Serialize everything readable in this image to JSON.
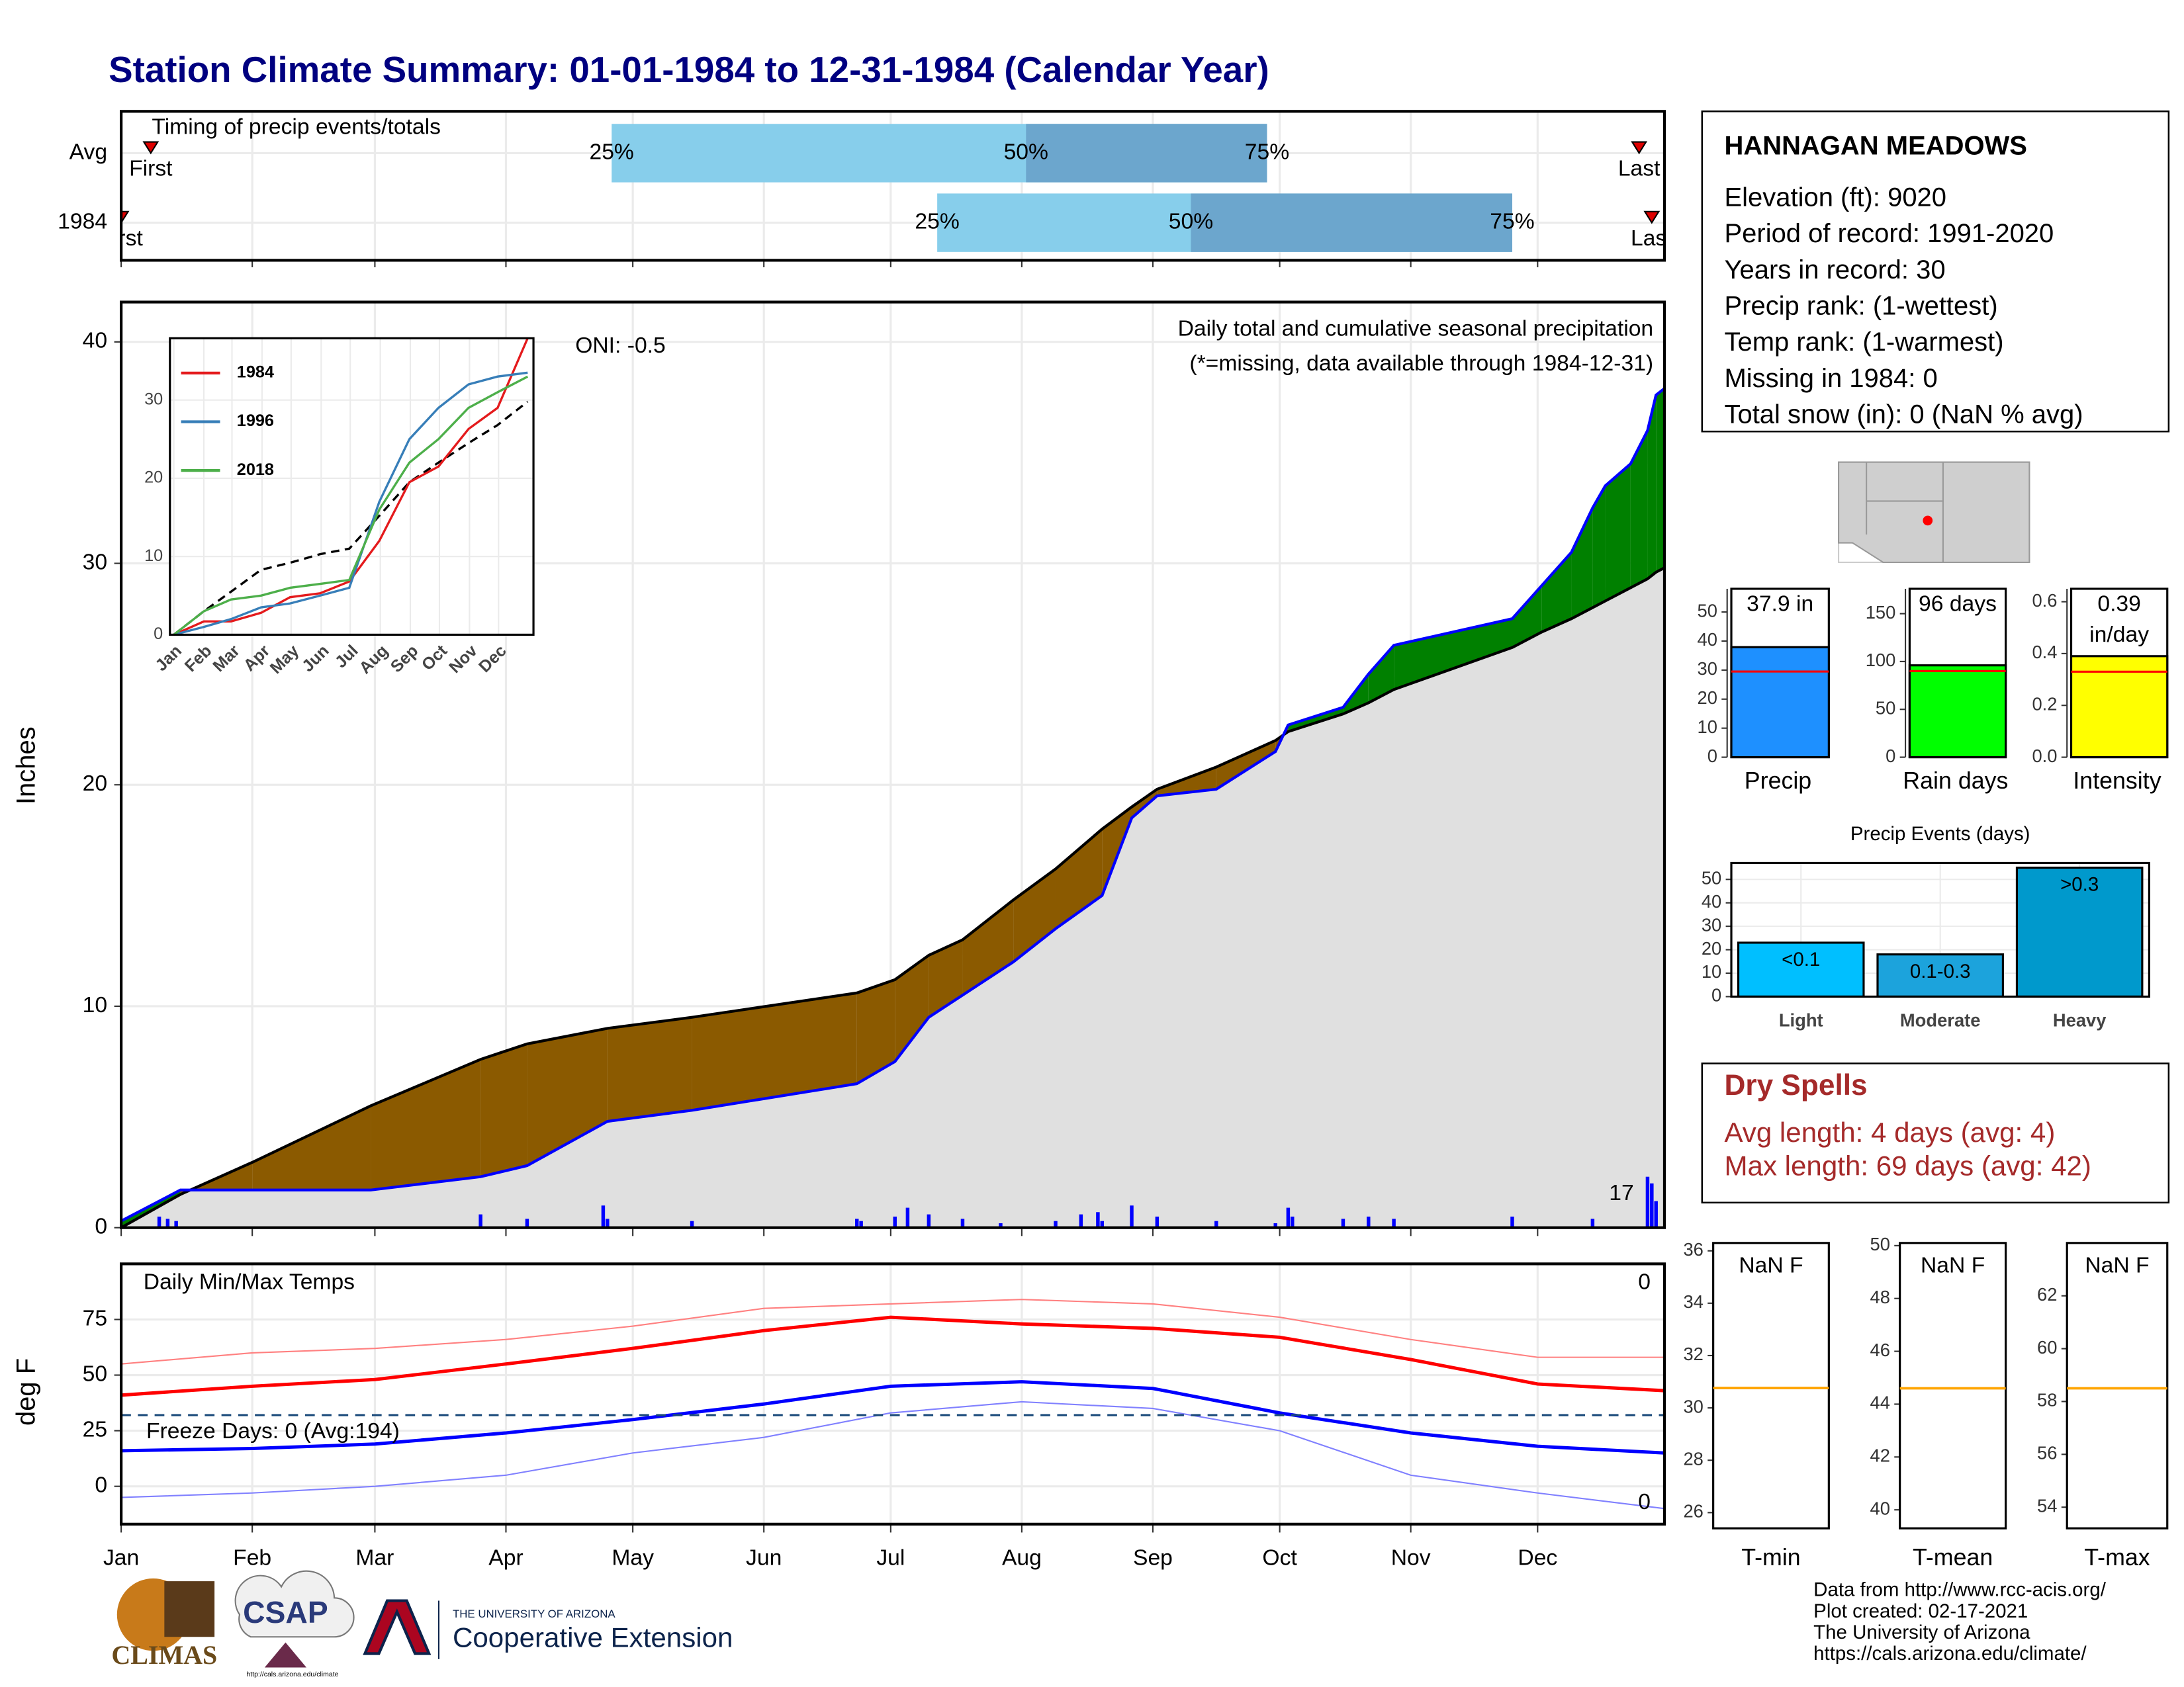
{
  "title": "Station Climate Summary: 01-01-1984 to 12-31-1984 (Calendar Year)",
  "chart_data": [
    {
      "type": "timing",
      "title": "Timing of precip events/totals",
      "categories": [
        "Avg",
        "1984"
      ],
      "series": [
        {
          "name": "First",
          "values": [
            8,
            1
          ]
        },
        {
          "name": "25%",
          "values": [
            117,
            194
          ]
        },
        {
          "name": "50%",
          "values": [
            215,
            254
          ]
        },
        {
          "name": "75%",
          "values": [
            272,
            330
          ]
        },
        {
          "name": "Last",
          "values": [
            360,
            363
          ]
        }
      ],
      "colors": [
        "#87ceeb",
        "#6ca6cd"
      ],
      "marker_color": "#dd0000",
      "xlim": [
        1,
        366
      ]
    },
    {
      "type": "precip",
      "ylabel": "Inches",
      "xlim": [
        1,
        366
      ],
      "ylim": [
        0,
        41.8
      ],
      "yticks": [
        0,
        10,
        20,
        30,
        40
      ],
      "annotations": [
        "ONI: -0.5",
        "Daily total and cumulative seasonal precipitation",
        "(*=missing, data available through 1984-12-31)",
        "17"
      ],
      "x": [
        1,
        15,
        32,
        60,
        86,
        97,
        116,
        136,
        175,
        184,
        192,
        200,
        212,
        222,
        233,
        240,
        246,
        260,
        274,
        277,
        290,
        296,
        302,
        330,
        337,
        344,
        349,
        352,
        358,
        362,
        364,
        366
      ],
      "observed": {
        "color": "#0000ff",
        "values": [
          0.3,
          1.7,
          1.7,
          1.7,
          2.3,
          2.8,
          4.8,
          5.3,
          6.5,
          7.5,
          9.5,
          10.5,
          12.0,
          13.5,
          15.0,
          18.5,
          19.5,
          19.8,
          21.5,
          22.7,
          23.5,
          25.0,
          26.3,
          27.5,
          29.0,
          30.5,
          32.5,
          33.5,
          34.5,
          36.0,
          37.6,
          37.9
        ]
      },
      "average": {
        "color": "#000000",
        "values": [
          0,
          1.5,
          2.95,
          5.5,
          7.6,
          8.3,
          9.0,
          9.5,
          10.6,
          11.2,
          12.3,
          13.0,
          14.8,
          16.2,
          18.0,
          19.0,
          19.8,
          20.8,
          22.0,
          22.4,
          23.2,
          23.7,
          24.3,
          26.2,
          26.9,
          27.5,
          28.0,
          28.3,
          28.9,
          29.3,
          29.6,
          29.8
        ]
      },
      "below_color": "#8b5a00",
      "above_color": "#008000",
      "base_color": "#e0e0e0",
      "daily": {
        "color": "#0000ff",
        "x": [
          10,
          12,
          14,
          86,
          97,
          115,
          116,
          136,
          175,
          176,
          184,
          187,
          192,
          200,
          209,
          222,
          228,
          232,
          233,
          240,
          246,
          260,
          274,
          277,
          278,
          290,
          296,
          302,
          330,
          349,
          362,
          363,
          364
        ],
        "values": [
          0.5,
          0.4,
          0.3,
          0.6,
          0.4,
          1.0,
          0.4,
          0.3,
          0.4,
          0.3,
          0.5,
          0.9,
          0.6,
          0.4,
          0.2,
          0.3,
          0.6,
          0.7,
          0.3,
          1.0,
          0.5,
          0.3,
          0.2,
          0.9,
          0.5,
          0.4,
          0.5,
          0.4,
          0.5,
          0.4,
          2.3,
          2.0,
          1.2
        ]
      }
    },
    {
      "type": "line",
      "legend": "top-left",
      "xlim": [
        -3,
        372
      ],
      "ylim": [
        0,
        37.9
      ],
      "yticks": [
        0,
        10,
        20,
        30
      ],
      "xticks": [
        {
          "value": 1,
          "label": "Jan"
        },
        {
          "value": 32,
          "label": "Feb"
        },
        {
          "value": 61,
          "label": "Mar"
        },
        {
          "value": 92,
          "label": "Apr"
        },
        {
          "value": 122,
          "label": "May"
        },
        {
          "value": 153,
          "label": "Jun"
        },
        {
          "value": 183,
          "label": "Jul"
        },
        {
          "value": 214,
          "label": "Aug"
        },
        {
          "value": 245,
          "label": "Sep"
        },
        {
          "value": 275,
          "label": "Oct"
        },
        {
          "value": 306,
          "label": "Nov"
        },
        {
          "value": 336,
          "label": "Dec"
        }
      ],
      "x": [
        1,
        32,
        60,
        91,
        121,
        152,
        182,
        213,
        244,
        274,
        305,
        335,
        366
      ],
      "series": [
        {
          "name": "1984",
          "color": "#e41a1c",
          "values": [
            0,
            1.7,
            1.7,
            2.8,
            4.8,
            5.3,
            6.8,
            12,
            19.5,
            21.5,
            26.3,
            29,
            37.9
          ]
        },
        {
          "name": "1996",
          "color": "#377eb8",
          "values": [
            0,
            1,
            2,
            3.5,
            4,
            5,
            6,
            17,
            25,
            29,
            32,
            33,
            33.5
          ]
        },
        {
          "name": "2018",
          "color": "#4daf4a",
          "values": [
            0,
            3,
            4.5,
            5,
            6,
            6.5,
            7,
            16,
            22,
            25,
            29,
            31,
            33
          ]
        }
      ],
      "average": {
        "color": "#000000",
        "values": [
          0,
          3,
          5.5,
          8.3,
          9.2,
          10.3,
          11,
          15.2,
          19.5,
          22,
          24.5,
          26.8,
          29.8
        ]
      }
    },
    {
      "type": "bar",
      "categories": [
        "Precip"
      ],
      "values": [
        37.9
      ],
      "value_labels": [
        "37.9 in"
      ],
      "reference": 29.5,
      "color": "#1e90ff",
      "reference_color": "#ff0000",
      "ylim": [
        0,
        58
      ],
      "yticks": [
        0,
        10,
        20,
        30,
        40,
        50
      ]
    },
    {
      "type": "bar",
      "categories": [
        "Rain days"
      ],
      "values": [
        96
      ],
      "value_labels": [
        "96 days"
      ],
      "reference": 90,
      "color": "#00ff00",
      "reference_color": "#ff0000",
      "ylim": [
        0,
        176
      ],
      "yticks": [
        0,
        50,
        100,
        150
      ]
    },
    {
      "type": "bar",
      "categories": [
        "Intensity"
      ],
      "values": [
        0.39
      ],
      "value_labels": [
        "0.39 in/day"
      ],
      "reference": 0.33,
      "color": "#ffff00",
      "reference_color": "#ff0000",
      "ylim": [
        0,
        0.65
      ],
      "yticks": [
        {
          "value": 0,
          "label": "0.0"
        },
        0.2,
        0.4,
        0.6
      ]
    },
    {
      "type": "line",
      "ylabel": "deg F",
      "xlim": [
        1,
        366
      ],
      "ylim": [
        -17,
        100
      ],
      "yticks": [
        0,
        25,
        50,
        75
      ],
      "freeze_line": 32,
      "annotations": [
        "Daily Min/Max Temps",
        "0",
        "0",
        "Freeze Days: 0 (Avg:194)"
      ],
      "xticks": [
        {
          "value": 1,
          "label": "Jan"
        },
        {
          "value": 32,
          "label": "Feb"
        },
        {
          "value": 61,
          "label": "Mar"
        },
        {
          "value": 92,
          "label": "Apr"
        },
        {
          "value": 122,
          "label": "May"
        },
        {
          "value": 153,
          "label": "Jun"
        },
        {
          "value": 183,
          "label": "Jul"
        },
        {
          "value": 214,
          "label": "Aug"
        },
        {
          "value": 245,
          "label": "Sep"
        },
        {
          "value": 275,
          "label": "Oct"
        },
        {
          "value": 306,
          "label": "Nov"
        },
        {
          "value": 336,
          "label": "Dec"
        }
      ],
      "x": [
        1,
        32,
        61,
        92,
        122,
        153,
        183,
        214,
        245,
        275,
        306,
        336,
        366
      ],
      "max": {
        "color": "#ff8080",
        "values": [
          55,
          60,
          62,
          66,
          72,
          80,
          82,
          84,
          82,
          76,
          66,
          58,
          58
        ]
      },
      "min": {
        "color": "#8080ff",
        "values": [
          -5,
          -3,
          0,
          5,
          15,
          22,
          33,
          38,
          35,
          25,
          5,
          -3,
          -10
        ]
      },
      "avg_max": {
        "color": "#ff0000",
        "values": [
          41,
          45,
          48,
          55,
          62,
          70,
          76,
          73,
          71,
          67,
          57,
          46,
          43
        ]
      },
      "avg_min": {
        "color": "#0000ff",
        "values": [
          16,
          17,
          19,
          24,
          30,
          37,
          45,
          47,
          44,
          33,
          24,
          18,
          15
        ]
      }
    },
    {
      "type": "bar",
      "title": "Precip Events (days)",
      "categories": [
        "Light",
        "Moderate",
        "Heavy"
      ],
      "values": [
        23,
        18,
        55
      ],
      "bar_labels": [
        "<0.1",
        "0.1-0.3",
        ">0.3"
      ],
      "colors": [
        "#00bfff",
        "#1ca3dc",
        "#0099cc"
      ],
      "ylim": [
        0,
        57
      ],
      "yticks": [
        0,
        10,
        20,
        30,
        40,
        50
      ]
    },
    {
      "type": "bar",
      "categories": [
        "T-min"
      ],
      "label": "NaN F",
      "reference": 30.76,
      "reference_color": "#ffa500",
      "ylim": [
        25.4,
        36.3
      ],
      "yticks": [
        26,
        28,
        30,
        32,
        34,
        36
      ]
    },
    {
      "type": "bar",
      "categories": [
        "T-mean"
      ],
      "label": "NaN F",
      "reference": 44.6,
      "reference_color": "#ffa500",
      "ylim": [
        39.3,
        50.1
      ],
      "yticks": [
        40,
        42,
        44,
        46,
        48,
        50
      ]
    },
    {
      "type": "bar",
      "categories": [
        "T-max"
      ],
      "label": "NaN F",
      "reference": 58.5,
      "reference_color": "#ffa500",
      "ylim": [
        53.2,
        64
      ],
      "yticks": [
        54,
        56,
        58,
        60,
        62
      ]
    }
  ],
  "station": {
    "name": "HANNAGAN MEADOWS",
    "lines": [
      "Elevation (ft): 9020",
      "Period of record: 1991-2020",
      "Years in record: 30",
      "Precip rank:  (1-wettest)",
      "Temp rank:  (1-warmest)",
      "Missing in 1984: 0",
      "Total snow (in): 0 (NaN % avg)"
    ]
  },
  "dry_spells": {
    "title": "Dry Spells",
    "lines": [
      "Avg length: 4 days (avg: 4)",
      "Max length: 69 days (avg: 42)"
    ]
  },
  "footer": [
    "Data from http://www.rcc-acis.org/",
    "Plot created: 02-17-2021",
    "The University of Arizona",
    "https://cals.arizona.edu/climate/"
  ],
  "logos": {
    "climas": "CLIMAS",
    "csap": "CSAP",
    "csap_url": "http://cals.arizona.edu/climate",
    "university": "THE UNIVERSITY OF ARIZONA",
    "extension": "Cooperative Extension"
  }
}
